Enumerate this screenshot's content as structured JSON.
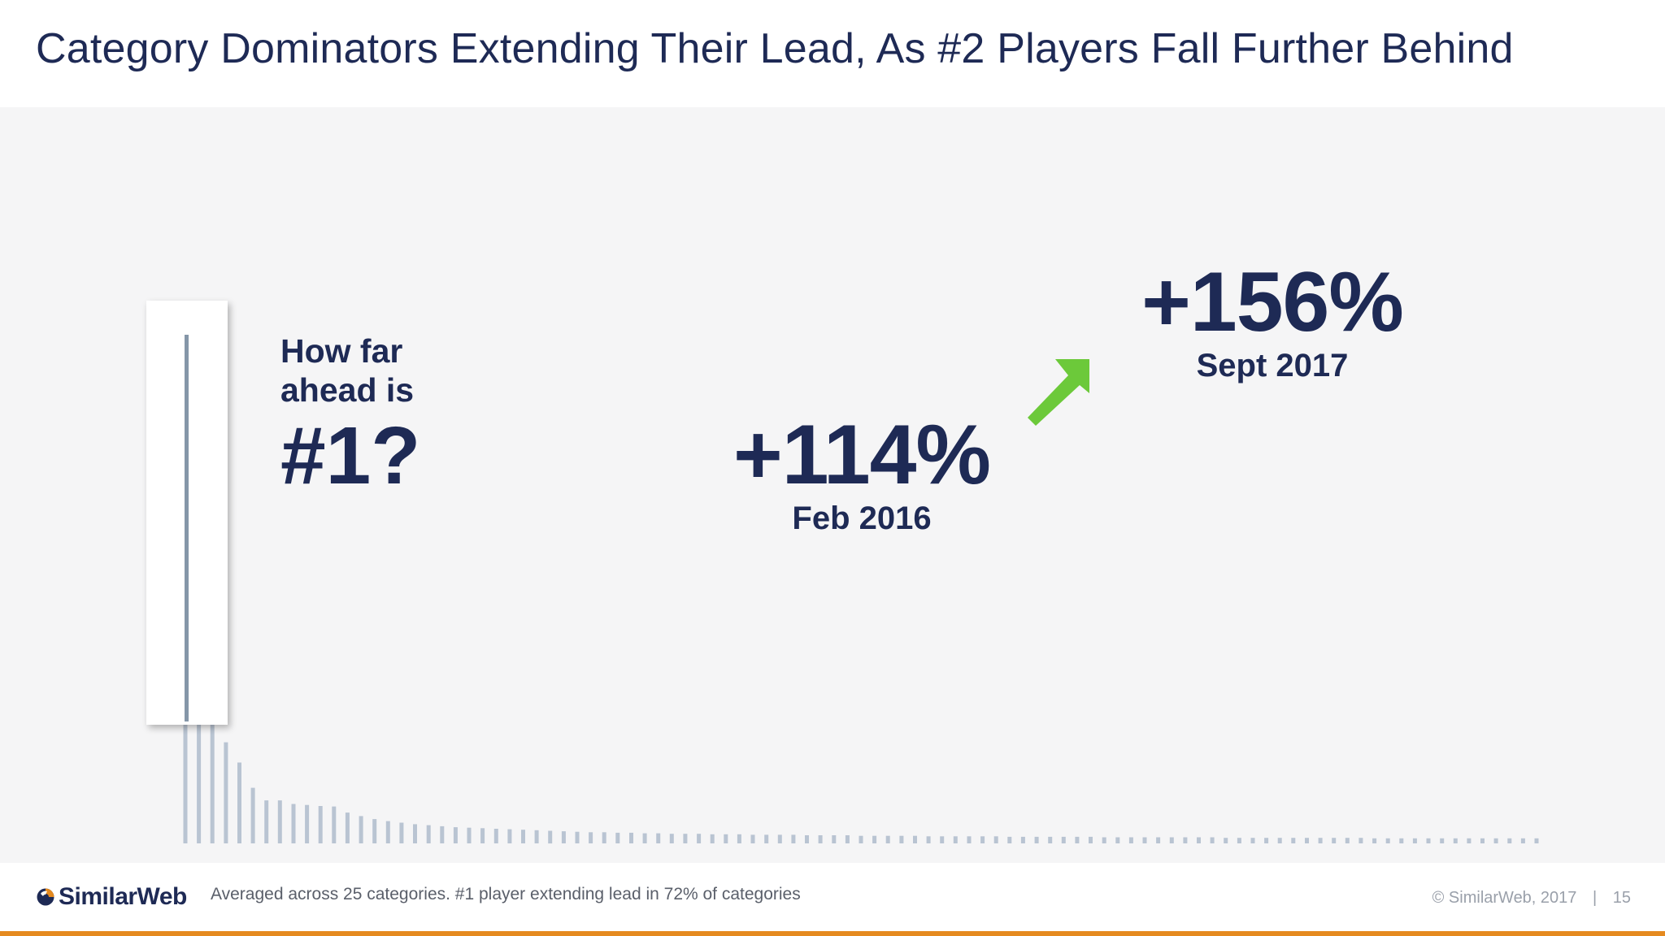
{
  "slide": {
    "title": "Category Dominators Extending Their Lead, As #2 Players Fall Further Behind"
  },
  "question": {
    "line1": "How far",
    "line2": "ahead is",
    "big": "#1?"
  },
  "stats": {
    "feb": {
      "value": "+114%",
      "date": "Feb 2016"
    },
    "sept": {
      "value": "+156%",
      "date": "Sept 2017"
    }
  },
  "footer": {
    "logo_text": "SimilarWeb",
    "note": "Averaged across 25 categories.  #1 player extending lead in 72% of categories",
    "copyright": "© SimilarWeb, 2017",
    "separator": "|",
    "page_number": "15"
  },
  "colors": {
    "navy": "#1e2a55",
    "accent_green": "#6cc93a",
    "footer_orange": "#e58a1f",
    "bar_grey": "#b9c4d2",
    "highlight_bar": "#8596a8"
  },
  "icons": {
    "arrow": "arrow-up-right-icon",
    "logo": "similarweb-logo-icon"
  },
  "chart_data": {
    "type": "bar",
    "values": [
      100,
      55,
      39,
      20,
      16,
      11,
      8.5,
      8.5,
      7.8,
      7.6,
      7.4,
      7.3,
      6.1,
      5.4,
      4.8,
      4.4,
      4.1,
      3.8,
      3.6,
      3.4,
      3.2,
      3.1,
      3.0,
      2.9,
      2.8,
      2.7,
      2.6,
      2.5,
      2.4,
      2.3,
      2.2,
      2.2,
      2.1,
      2.1,
      2.0,
      2.0,
      1.9,
      1.9,
      1.9,
      1.8,
      1.8,
      1.8,
      1.7,
      1.7,
      1.7,
      1.7,
      1.6,
      1.6,
      1.6,
      1.6,
      1.5,
      1.5,
      1.5,
      1.5,
      1.5,
      1.4,
      1.4,
      1.4,
      1.4,
      1.4,
      1.4,
      1.3,
      1.3,
      1.3,
      1.3,
      1.3,
      1.3,
      1.3,
      1.2,
      1.2,
      1.2,
      1.2,
      1.2,
      1.2,
      1.2,
      1.2,
      1.2,
      1.1,
      1.1,
      1.1,
      1.1,
      1.1,
      1.1,
      1.1,
      1.1,
      1.1,
      1.1,
      1.1,
      1.0,
      1.0,
      1.0,
      1.0,
      1.0,
      1.0,
      1.0,
      1.0,
      1.0,
      1.0,
      1.0,
      1.0,
      1.0
    ],
    "highlight_index": 0,
    "title": "",
    "xlabel": "",
    "ylabel": "",
    "grid": false,
    "legend": "none"
  }
}
